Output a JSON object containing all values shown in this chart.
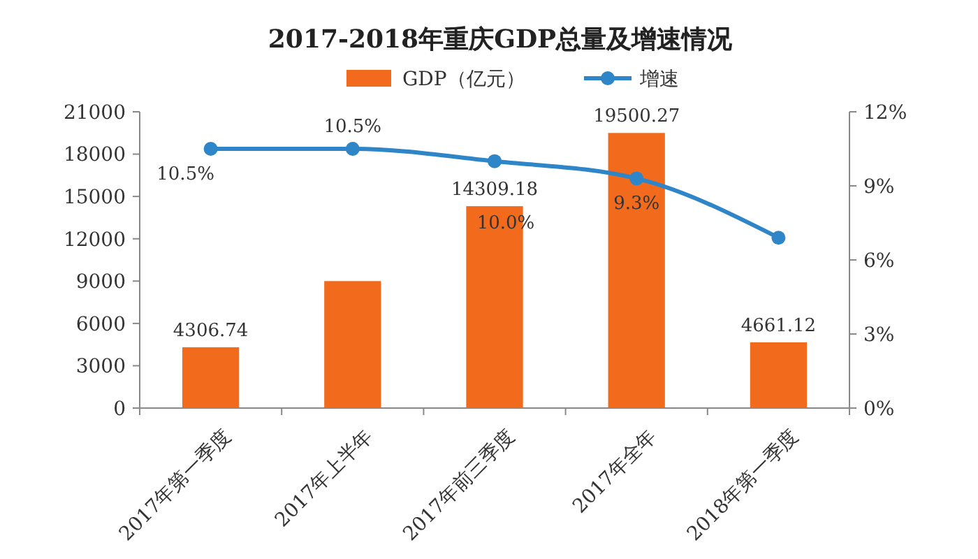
{
  "chart_data": {
    "type": "bar",
    "title": "2017-2018年重庆GDP总量及增速情况",
    "categories": [
      "2017年第一季度",
      "2017年上半年",
      "2017年前三季度",
      "2017年全年",
      "2018年第一季度"
    ],
    "series": [
      {
        "name": "GDP（亿元）",
        "color": "#f26b1d",
        "values": [
          4306.74,
          9000,
          14309.18,
          19500.27,
          4661.12
        ],
        "value_labels": [
          "4306.74",
          null,
          "14309.18",
          "19500.27",
          "4661.12"
        ]
      },
      {
        "name": "增速",
        "type": "line",
        "axis": "y2",
        "color": "#2e86c8",
        "marker": "circle",
        "values": [
          10.5,
          10.5,
          10.0,
          9.3,
          6.9
        ],
        "value_labels": [
          "10.5%",
          "10.5%",
          "10.0%",
          "9.3%",
          null
        ]
      }
    ],
    "ylim": [
      0,
      21000
    ],
    "yticks": [
      0,
      3000,
      6000,
      9000,
      12000,
      15000,
      18000,
      21000
    ],
    "y2lim": [
      0,
      12
    ],
    "y2ticks": [
      {
        "value": 0,
        "label": "0%"
      },
      {
        "value": 3,
        "label": "3%"
      },
      {
        "value": 6,
        "label": "6%"
      },
      {
        "value": 9,
        "label": "9%"
      },
      {
        "value": 12,
        "label": "12%"
      }
    ],
    "legend": "top",
    "grid": false
  }
}
